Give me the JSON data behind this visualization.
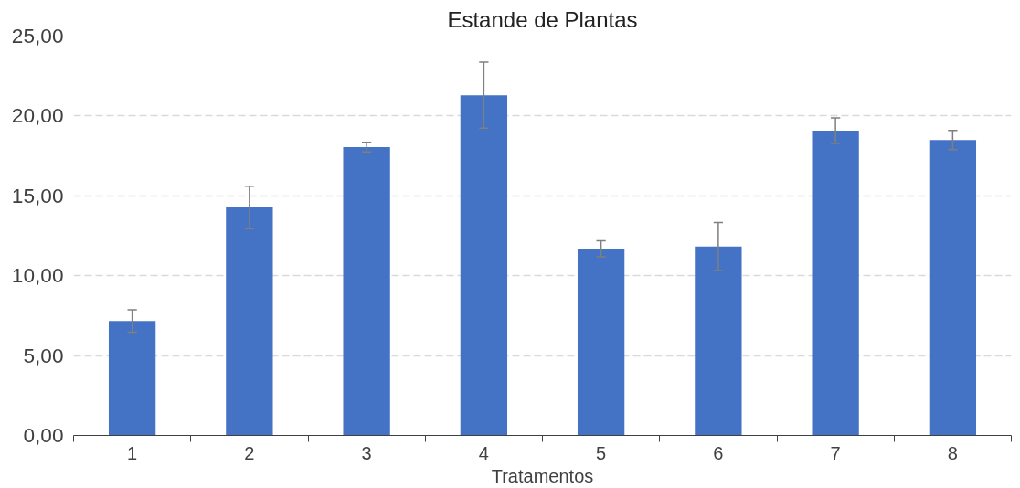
{
  "chart_data": {
    "type": "bar",
    "title": "Estande de Plantas",
    "xlabel": "Tratamentos",
    "categories": [
      "1",
      "2",
      "3",
      "4",
      "5",
      "6",
      "7",
      "8"
    ],
    "values": [
      7.17,
      14.27,
      18.05,
      21.3,
      11.69,
      11.83,
      19.08,
      18.49
    ],
    "errors": [
      0.7,
      1.33,
      0.3,
      2.07,
      0.5,
      1.5,
      0.8,
      0.6
    ],
    "color": "#4472c4",
    "ylim": [
      0,
      25
    ],
    "yticks": [
      {
        "value": 0,
        "label": "0,00"
      },
      {
        "value": 5,
        "label": "5,00"
      },
      {
        "value": 10,
        "label": "10,00"
      },
      {
        "value": 15,
        "label": "15,00"
      },
      {
        "value": 20,
        "label": "20,00"
      },
      {
        "value": 25,
        "label": "25,00"
      }
    ],
    "grid": "y",
    "line_style": "dashed"
  }
}
